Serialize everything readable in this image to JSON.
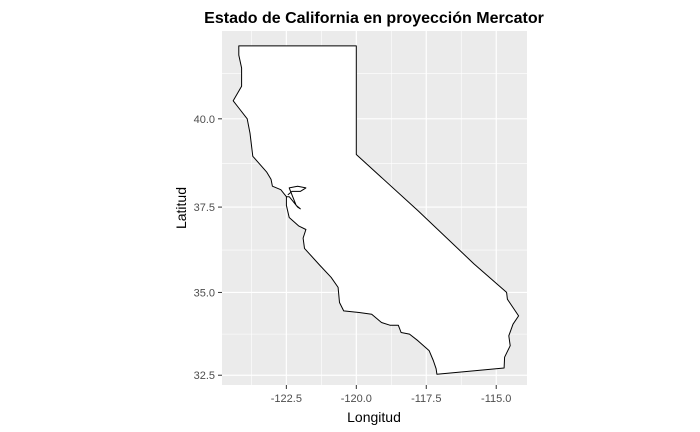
{
  "chart_data": {
    "type": "map",
    "title": "Estado de California en proyección Mercator",
    "xlabel": "Longitud",
    "ylabel": "Latitud",
    "projection": "mercator",
    "background_color": "#ebebeb",
    "grid_color": "#ffffff",
    "fill_color": "#ffffff",
    "stroke_color": "#000000",
    "grid": true,
    "xlim": [
      -124.8,
      -113.9
    ],
    "ylim": [
      32.2,
      42.4
    ],
    "x_ticks": [
      {
        "value": -122.5,
        "label": "-122.5"
      },
      {
        "value": -120.0,
        "label": "-120.0"
      },
      {
        "value": -117.5,
        "label": "-117.5"
      },
      {
        "value": -115.0,
        "label": "-115.0"
      }
    ],
    "y_ticks": [
      {
        "value": 32.5,
        "label": "32.5"
      },
      {
        "value": 35.0,
        "label": "35.0"
      },
      {
        "value": 37.5,
        "label": "37.5"
      },
      {
        "value": 40.0,
        "label": "40.0"
      }
    ],
    "outline": [
      [
        -124.2,
        42.0
      ],
      [
        -122.25,
        42.0
      ],
      [
        -121.0,
        42.0
      ],
      [
        -120.0,
        42.0
      ],
      [
        -120.0,
        39.0
      ],
      [
        -117.8,
        37.4
      ],
      [
        -115.8,
        35.85
      ],
      [
        -114.63,
        35.0
      ],
      [
        -114.6,
        34.8
      ],
      [
        -114.2,
        34.3
      ],
      [
        -114.4,
        34.05
      ],
      [
        -114.55,
        33.7
      ],
      [
        -114.5,
        33.4
      ],
      [
        -114.7,
        33.05
      ],
      [
        -114.72,
        32.72
      ],
      [
        -117.12,
        32.53
      ],
      [
        -117.15,
        32.7
      ],
      [
        -117.25,
        32.95
      ],
      [
        -117.4,
        33.25
      ],
      [
        -117.8,
        33.55
      ],
      [
        -118.1,
        33.75
      ],
      [
        -118.4,
        33.8
      ],
      [
        -118.5,
        34.02
      ],
      [
        -118.8,
        34.02
      ],
      [
        -119.1,
        34.1
      ],
      [
        -119.45,
        34.35
      ],
      [
        -119.9,
        34.4
      ],
      [
        -120.45,
        34.45
      ],
      [
        -120.6,
        34.7
      ],
      [
        -120.65,
        35.15
      ],
      [
        -120.9,
        35.45
      ],
      [
        -121.3,
        35.8
      ],
      [
        -121.85,
        36.3
      ],
      [
        -121.9,
        36.6
      ],
      [
        -121.8,
        36.85
      ],
      [
        -122.05,
        36.95
      ],
      [
        -122.4,
        37.2
      ],
      [
        -122.5,
        37.55
      ],
      [
        -122.5,
        37.8
      ],
      [
        -122.6,
        37.9
      ],
      [
        -122.7,
        38.0
      ],
      [
        -123.0,
        38.1
      ],
      [
        -123.05,
        38.3
      ],
      [
        -123.2,
        38.5
      ],
      [
        -123.7,
        38.95
      ],
      [
        -123.8,
        39.6
      ],
      [
        -123.9,
        40.0
      ],
      [
        -124.2,
        40.3
      ],
      [
        -124.4,
        40.5
      ],
      [
        -124.1,
        40.9
      ],
      [
        -124.1,
        41.4
      ],
      [
        -124.2,
        41.75
      ],
      [
        -124.2,
        42.0
      ]
    ],
    "bay": [
      [
        -122.5,
        37.8
      ],
      [
        -122.4,
        37.8
      ],
      [
        -122.3,
        37.7
      ],
      [
        -122.1,
        37.5
      ],
      [
        -122.0,
        37.45
      ],
      [
        -122.15,
        37.55
      ],
      [
        -122.3,
        37.85
      ],
      [
        -122.4,
        38.05
      ],
      [
        -122.1,
        38.1
      ],
      [
        -121.8,
        38.05
      ],
      [
        -122.0,
        37.95
      ],
      [
        -122.3,
        37.95
      ],
      [
        -122.45,
        37.85
      ]
    ]
  }
}
